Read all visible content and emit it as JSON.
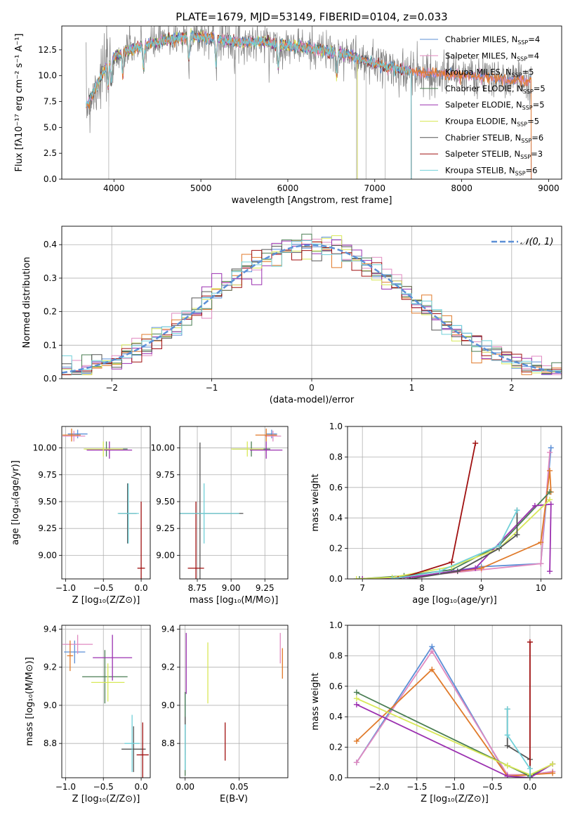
{
  "figure_title": "PLATE=1679, MJD=53149, FIBERID=0104, z=0.033",
  "models": [
    {
      "name": "Chabrier MILES, N",
      "sub": "SSP",
      "count": "=4",
      "color": "#5b8fd6"
    },
    {
      "name": "Salpeter MILES, N",
      "sub": "SSP",
      "count": "=4",
      "color": "#e08ac0"
    },
    {
      "name": "Kroupa MILES, N",
      "sub": "SSP",
      "count": "=5",
      "color": "#e07a2a"
    },
    {
      "name": "Chabrier ELODIE, N",
      "sub": "SSP",
      "count": "=5",
      "color": "#4a7d52"
    },
    {
      "name": "Salpeter ELODIE, N",
      "sub": "SSP",
      "count": "=5",
      "color": "#9b30b0"
    },
    {
      "name": "Kroupa ELODIE, N",
      "sub": "SSP",
      "count": "=5",
      "color": "#d8e858"
    },
    {
      "name": "Chabrier STELIB, N",
      "sub": "SSP",
      "count": "=6",
      "color": "#555555"
    },
    {
      "name": "Salpeter STELIB, N",
      "sub": "SSP",
      "count": "=3",
      "color": "#a01010"
    },
    {
      "name": "Kroupa STELIB, N",
      "sub": "SSP",
      "count": "=6",
      "color": "#70d0d8"
    }
  ],
  "chart_data": [
    {
      "id": "spectrum",
      "type": "line",
      "xlabel": "wavelength [Angstrom, rest frame]",
      "ylabel": "Flux [fλ10⁻¹⁷ erg cm⁻² s⁻¹ A⁻¹]",
      "xlim": [
        3400,
        9150
      ],
      "ylim": [
        0,
        14.8
      ],
      "xticks": [
        4000,
        5000,
        6000,
        7000,
        8000,
        9000
      ],
      "yticks": [
        0.0,
        2.5,
        5.0,
        7.5,
        10.0,
        12.5
      ],
      "grid": false,
      "legend": "upper right",
      "data_color": "#808080",
      "continuum": {
        "x": [
          3680,
          3800,
          3950,
          4100,
          4300,
          4500,
          4700,
          4900,
          5100,
          5300,
          5500,
          5700,
          5900,
          6100,
          6300,
          6500,
          6700,
          6900,
          7100,
          7300,
          7500,
          7700,
          7900,
          8100,
          8300,
          8500,
          8700,
          8800
        ],
        "y": [
          7.0,
          9.0,
          11.5,
          12.3,
          12.8,
          13.2,
          13.6,
          13.8,
          13.7,
          13.4,
          13.2,
          13.3,
          13.0,
          12.8,
          12.6,
          12.3,
          12.0,
          11.4,
          10.9,
          10.6,
          10.3,
          10.2,
          10.1,
          10.0,
          9.8,
          9.6,
          9.5,
          9.5
        ]
      },
      "model_ranges": [
        [
          3680,
          8800
        ],
        [
          3680,
          8800
        ],
        [
          3680,
          8800
        ],
        [
          3680,
          6800
        ],
        [
          3680,
          6800
        ],
        [
          3680,
          6800
        ],
        [
          3680,
          7420
        ],
        [
          3680,
          7420
        ],
        [
          3680,
          7420
        ]
      ]
    },
    {
      "id": "residual_hist",
      "type": "step",
      "xlabel": "(data-model)/error",
      "ylabel": "Normed distribution",
      "xlim": [
        -2.5,
        2.5
      ],
      "ylim": [
        0,
        0.455
      ],
      "xticks": [
        -2,
        -1,
        0,
        1,
        2
      ],
      "yticks": [
        0.0,
        0.1,
        0.2,
        0.3,
        0.4
      ],
      "grid": true,
      "legend": "upper right",
      "reference": {
        "label": "𝒩(0, 1)",
        "color": "#5b8fd6",
        "mean": 0,
        "sigma": 1
      },
      "bin_width": 0.1
    },
    {
      "id": "age_vs_Z",
      "type": "errorbar",
      "xlabel": "Z [log₁₀(Z/Z⊙)]",
      "ylabel": "age  [log₁₀(age/yr)]",
      "xlim": [
        -1.05,
        0.12
      ],
      "ylim": [
        8.78,
        10.2
      ],
      "xticks": [
        -1.0,
        -0.5,
        0.0
      ],
      "yticks": [
        9.0,
        9.25,
        9.5,
        9.75,
        10.0
      ],
      "grid": true,
      "points": [
        {
          "m": 0,
          "x": -0.84,
          "y": 10.13,
          "xerr": 0.13,
          "yerr": 0.04
        },
        {
          "m": 1,
          "x": -0.89,
          "y": 10.11,
          "xerr": 0.15,
          "yerr": 0.05
        },
        {
          "m": 2,
          "x": -0.92,
          "y": 10.12,
          "xerr": 0.12,
          "yerr": 0.06
        },
        {
          "m": 3,
          "x": -0.46,
          "y": 9.99,
          "xerr": 0.28,
          "yerr": 0.07
        },
        {
          "m": 4,
          "x": -0.42,
          "y": 9.98,
          "xerr": 0.3,
          "yerr": 0.08
        },
        {
          "m": 5,
          "x": -0.5,
          "y": 9.99,
          "xerr": 0.26,
          "yerr": 0.07
        },
        {
          "m": 6,
          "x": -0.18,
          "y": 9.39,
          "xerr": 0.12,
          "yerr": 0.28
        },
        {
          "m": 7,
          "x": 0.0,
          "y": 8.88,
          "xerr": 0.05,
          "yerr": 0.62
        },
        {
          "m": 8,
          "x": -0.17,
          "y": 9.39,
          "xerr": 0.14,
          "yerr": 0.28
        }
      ]
    },
    {
      "id": "age_vs_mass",
      "type": "errorbar",
      "xlabel": "mass [log₁₀(M/M⊙)]",
      "ylabel": "",
      "xlim": [
        8.62,
        9.42
      ],
      "ylim": [
        8.78,
        10.2
      ],
      "xticks": [
        8.75,
        9.0,
        9.25
      ],
      "yticks": [
        9.0,
        9.25,
        9.5,
        9.75,
        10.0
      ],
      "grid": true,
      "points": [
        {
          "m": 0,
          "x": 9.3,
          "y": 10.13,
          "xerr": 0.04,
          "yerr": 0.04
        },
        {
          "m": 1,
          "x": 9.31,
          "y": 10.11,
          "xerr": 0.06,
          "yerr": 0.05
        },
        {
          "m": 2,
          "x": 9.26,
          "y": 10.12,
          "xerr": 0.08,
          "yerr": 0.06
        },
        {
          "m": 3,
          "x": 9.15,
          "y": 9.99,
          "xerr": 0.14,
          "yerr": 0.07
        },
        {
          "m": 4,
          "x": 9.26,
          "y": 9.98,
          "xerr": 0.12,
          "yerr": 0.08
        },
        {
          "m": 5,
          "x": 9.12,
          "y": 9.99,
          "xerr": 0.12,
          "yerr": 0.07
        },
        {
          "m": 6,
          "x": 8.77,
          "y": 9.39,
          "xerr": 0.32,
          "yerr": 0.66
        },
        {
          "m": 7,
          "x": 8.74,
          "y": 8.88,
          "xerr": 0.06,
          "yerr": 0.62
        },
        {
          "m": 8,
          "x": 8.8,
          "y": 9.39,
          "xerr": 0.26,
          "yerr": 0.28
        }
      ]
    },
    {
      "id": "weight_vs_age",
      "type": "line",
      "xlabel": "age  [log₁₀(age/yr)]",
      "ylabel": "mass weight",
      "xlim": [
        6.75,
        10.35
      ],
      "ylim": [
        0,
        1.0
      ],
      "xticks": [
        7,
        8,
        9,
        10
      ],
      "yticks": [
        0.0,
        0.2,
        0.4,
        0.6,
        0.8,
        1.0
      ],
      "grid": true,
      "series": [
        {
          "m": 0,
          "x": [
            7.0,
            8.0,
            9.0,
            10.0,
            10.17
          ],
          "y": [
            0.0,
            0.02,
            0.08,
            0.1,
            0.86
          ]
        },
        {
          "m": 1,
          "x": [
            7.0,
            8.0,
            9.0,
            10.0,
            10.15
          ],
          "y": [
            0.0,
            0.02,
            0.06,
            0.1,
            0.83
          ]
        },
        {
          "m": 2,
          "x": [
            7.0,
            7.8,
            9.0,
            10.0,
            10.15,
            10.17
          ],
          "y": [
            0.0,
            0.01,
            0.07,
            0.24,
            0.71,
            0.57
          ]
        },
        {
          "m": 3,
          "x": [
            6.95,
            7.7,
            8.5,
            9.3,
            10.15
          ],
          "y": [
            0.0,
            0.02,
            0.06,
            0.22,
            0.57
          ]
        },
        {
          "m": 4,
          "x": [
            7.0,
            7.8,
            8.9,
            9.9,
            10.17,
            10.15
          ],
          "y": [
            0.0,
            0.01,
            0.07,
            0.48,
            0.49,
            0.05
          ]
        },
        {
          "m": 5,
          "x": [
            6.9,
            7.5,
            8.5,
            9.3,
            10.15
          ],
          "y": [
            0.0,
            0.01,
            0.08,
            0.2,
            0.52
          ]
        },
        {
          "m": 6,
          "x": [
            7.8,
            8.6,
            9.3,
            9.6,
            9.6
          ],
          "y": [
            0.0,
            0.05,
            0.2,
            0.29,
            0.45
          ]
        },
        {
          "m": 7,
          "x": [
            7.6,
            8.5,
            8.9
          ],
          "y": [
            0.0,
            0.11,
            0.89
          ]
        },
        {
          "m": 8,
          "x": [
            7.5,
            8.3,
            9.3,
            9.6
          ],
          "y": [
            0.0,
            0.05,
            0.22,
            0.45
          ]
        }
      ]
    },
    {
      "id": "mass_vs_Z",
      "type": "errorbar",
      "xlabel": "Z [log₁₀(Z/Z⊙)]",
      "ylabel": "mass [log₁₀(M/M⊙)]",
      "xlim": [
        -1.05,
        0.12
      ],
      "ylim": [
        8.62,
        9.42
      ],
      "xticks": [
        -1.0,
        -0.5,
        0.0
      ],
      "yticks": [
        8.8,
        9.0,
        9.2,
        9.4
      ],
      "grid": true,
      "points": [
        {
          "m": 0,
          "x": -0.88,
          "y": 9.28,
          "xerr": 0.14,
          "yerr": 0.06
        },
        {
          "m": 1,
          "x": -0.84,
          "y": 9.32,
          "xerr": 0.2,
          "yerr": 0.05
        },
        {
          "m": 2,
          "x": -0.94,
          "y": 9.26,
          "xerr": 0.04,
          "yerr": 0.08
        },
        {
          "m": 3,
          "x": -0.48,
          "y": 9.15,
          "xerr": 0.3,
          "yerr": 0.14
        },
        {
          "m": 4,
          "x": -0.38,
          "y": 9.25,
          "xerr": 0.26,
          "yerr": 0.12
        },
        {
          "m": 5,
          "x": -0.44,
          "y": 9.12,
          "xerr": 0.22,
          "yerr": 0.1
        },
        {
          "m": 6,
          "x": -0.1,
          "y": 8.77,
          "xerr": 0.16,
          "yerr": 0.12
        },
        {
          "m": 7,
          "x": 0.02,
          "y": 8.74,
          "xerr": 0.08,
          "yerr": 0.17
        },
        {
          "m": 8,
          "x": -0.12,
          "y": 8.8,
          "xerr": 0.1,
          "yerr": 0.15
        }
      ]
    },
    {
      "id": "mass_vs_EBV",
      "type": "errorbar",
      "xlabel": "E(B-V)",
      "ylabel": "",
      "xlim": [
        -0.005,
        0.095
      ],
      "ylim": [
        8.62,
        9.42
      ],
      "xticks": [
        0.0,
        0.05
      ],
      "yticks": [
        8.8,
        9.0,
        9.2,
        9.4
      ],
      "grid": true,
      "points": [
        {
          "m": 0,
          "x": 0.0,
          "y": 8.86,
          "xerr": 0,
          "yerr": 0.2
        },
        {
          "m": 1,
          "x": 0.088,
          "y": 9.3,
          "xerr": 0,
          "yerr": 0.08
        },
        {
          "m": 2,
          "x": 0.09,
          "y": 9.22,
          "xerr": 0,
          "yerr": 0.08
        },
        {
          "m": 3,
          "x": 0.0,
          "y": 8.85,
          "xerr": 0,
          "yerr": 0.22
        },
        {
          "m": 4,
          "x": 0.001,
          "y": 9.22,
          "xerr": 0,
          "yerr": 0.16
        },
        {
          "m": 5,
          "x": 0.021,
          "y": 9.17,
          "xerr": 0,
          "yerr": 0.16
        },
        {
          "m": 6,
          "x": 0.0,
          "y": 8.84,
          "xerr": 0,
          "yerr": 0.1
        },
        {
          "m": 7,
          "x": 0.037,
          "y": 8.81,
          "xerr": 0,
          "yerr": 0.1
        },
        {
          "m": 8,
          "x": 0.0,
          "y": 8.78,
          "xerr": 0,
          "yerr": 0.12
        }
      ]
    },
    {
      "id": "weight_vs_Z",
      "type": "line",
      "xlabel": "Z [log₁₀(Z/Z⊙)]",
      "ylabel": "mass weight",
      "xlim": [
        -2.42,
        0.42
      ],
      "ylim": [
        0,
        1.0
      ],
      "xticks": [
        -2.0,
        -1.5,
        -1.0,
        -0.5,
        0.0
      ],
      "yticks": [
        0.0,
        0.2,
        0.4,
        0.6,
        0.8,
        1.0
      ],
      "grid": true,
      "series": [
        {
          "m": 0,
          "x": [
            -2.3,
            -1.3,
            -0.3,
            0.0,
            0.3
          ],
          "y": [
            0.1,
            0.86,
            0.01,
            0.02,
            0.04
          ]
        },
        {
          "m": 1,
          "x": [
            -2.3,
            -1.3,
            -0.3,
            0.0,
            0.3
          ],
          "y": [
            0.1,
            0.83,
            0.02,
            0.02,
            0.04
          ]
        },
        {
          "m": 2,
          "x": [
            -2.3,
            -1.3,
            -0.3,
            0.0,
            0.3
          ],
          "y": [
            0.24,
            0.71,
            0.01,
            0.02,
            0.03
          ]
        },
        {
          "m": 3,
          "x": [
            -2.3,
            -0.3,
            0.0,
            0.3
          ],
          "y": [
            0.56,
            0.08,
            0.01,
            0.09
          ]
        },
        {
          "m": 4,
          "x": [
            -2.3,
            -0.3,
            0.0,
            0.3
          ],
          "y": [
            0.48,
            0.01,
            0.0,
            0.09
          ]
        },
        {
          "m": 5,
          "x": [
            -2.3,
            -0.3,
            0.0,
            0.3
          ],
          "y": [
            0.52,
            0.08,
            0.02,
            0.09
          ]
        },
        {
          "m": 6,
          "x": [
            -0.3,
            -0.3,
            0.0,
            0.0
          ],
          "y": [
            0.45,
            0.21,
            0.12,
            0.0
          ]
        },
        {
          "m": 7,
          "x": [
            0.0,
            0.0
          ],
          "y": [
            0.0,
            0.89
          ]
        },
        {
          "m": 8,
          "x": [
            -0.3,
            -0.3,
            0.0,
            0.0
          ],
          "y": [
            0.45,
            0.28,
            0.06,
            0.0
          ]
        }
      ]
    }
  ]
}
